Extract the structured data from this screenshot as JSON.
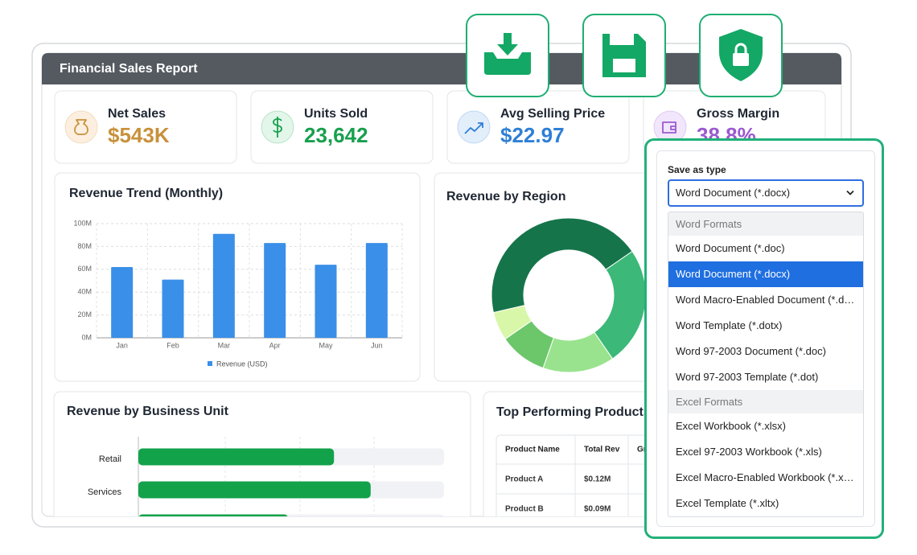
{
  "header": {
    "title": "Financial Sales Report"
  },
  "kpis": [
    {
      "label": "Net Sales",
      "value": "$543K"
    },
    {
      "label": "Units Sold",
      "value": "23,642"
    },
    {
      "label": "Avg Selling Price",
      "value": "$22.97"
    },
    {
      "label": "Gross Margin",
      "value": "38.8%"
    }
  ],
  "chart_data": [
    {
      "type": "bar",
      "title": "Revenue Trend (Monthly)",
      "categories": [
        "Jan",
        "Feb",
        "Mar",
        "Apr",
        "May",
        "Jun"
      ],
      "series": [
        {
          "name": "Revenue (USD)",
          "color": "#3a8fe8",
          "values": [
            62,
            51,
            91,
            83,
            64,
            83
          ]
        }
      ],
      "ylim": [
        0,
        100
      ],
      "yticks": [
        {
          "value": 0,
          "label": "0M"
        },
        {
          "value": 20,
          "label": "20M"
        },
        {
          "value": 40,
          "label": "40M"
        },
        {
          "value": 60,
          "label": "60M"
        },
        {
          "value": 80,
          "label": "80M"
        },
        {
          "value": 100,
          "label": "100M"
        }
      ],
      "grid": true,
      "legend": "bottom"
    },
    {
      "type": "pie",
      "title": "Revenue by Region",
      "values": [
        44,
        25,
        15,
        10,
        6
      ],
      "colors": [
        "#16744a",
        "#3cb878",
        "#9ae38e",
        "#6cc66a",
        "#d8f7a9"
      ]
    },
    {
      "type": "hbar",
      "title": "Revenue by Business Unit",
      "categories": [
        "Retail",
        "Services",
        null
      ],
      "values": [
        64,
        76,
        49
      ],
      "color": "#12a24a",
      "xlim": [
        0,
        100
      ]
    }
  ],
  "table": {
    "title": "Top Performing Products",
    "columns": [
      "Product Name",
      "Total Rev",
      "Growth"
    ],
    "rows": [
      [
        "Product A",
        "$0.12M"
      ],
      [
        "Product B",
        "$0.09M"
      ]
    ]
  },
  "save_dialog": {
    "label": "Save as type",
    "selected": "Word Document (*.docx)",
    "groups": [
      {
        "name": "Word Formats",
        "options": [
          "Word Document (*.doc)",
          "Word Document (*.docx)",
          "Word Macro-Enabled Document (*.docm)",
          "Word Template (*.dotx)",
          "Word 97-2003 Document (*.doc)",
          "Word 97-2003 Template (*.dot)"
        ]
      },
      {
        "name": "Excel Formats",
        "options": [
          "Excel Workbook (*.xlsx)",
          "Excel 97-2003 Workbook (*.xls)",
          "Excel Macro-Enabled Workbook (*.xlsm)",
          "Excel Template (*.xltx)"
        ]
      }
    ]
  }
}
